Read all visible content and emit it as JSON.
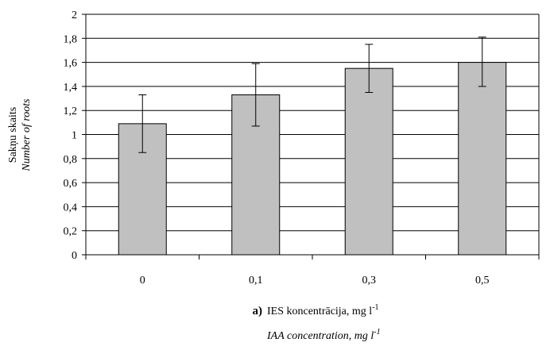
{
  "chart_data": {
    "type": "bar",
    "categories": [
      "0",
      "0,1",
      "0,3",
      "0,5"
    ],
    "values": [
      1.09,
      1.33,
      1.55,
      1.6
    ],
    "error_low": [
      0.85,
      1.07,
      1.35,
      1.4
    ],
    "error_high": [
      1.33,
      1.59,
      1.75,
      1.81
    ],
    "ylim": [
      0,
      2
    ],
    "yticks": [
      0,
      0.2,
      0.4,
      0.6,
      0.8,
      1.0,
      1.2,
      1.4,
      1.6,
      1.8,
      2.0
    ],
    "ytick_labels": [
      "0",
      "0,2",
      "0,4",
      "0,6",
      "0,8",
      "1",
      "1,2",
      "1,4",
      "1,6",
      "1,8",
      "2"
    ],
    "ylabel": "Sakņu skaits",
    "ylabel_en": "Number of roots",
    "xlabel": "IES koncentrācija, mg l",
    "xlabel_en": "IAA concentration, mg l",
    "unit_exponent": "-1",
    "panel_label": "a)",
    "grid": true,
    "bar_color": "#c0c0c0"
  }
}
